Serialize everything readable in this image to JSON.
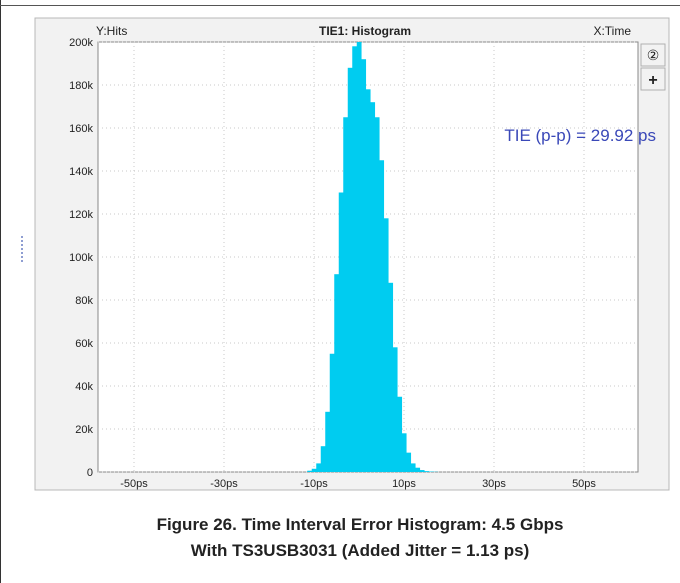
{
  "chart_data": {
    "type": "bar",
    "title": "TIE1: Histogram",
    "ylabel": "Y:Hits",
    "xlabel": "X:Time",
    "xlim": [
      -58,
      62
    ],
    "ylim": [
      0,
      200000
    ],
    "x_ticks": [
      -50,
      -30,
      -10,
      10,
      30,
      50
    ],
    "x_tick_labels": [
      "-50ps",
      "-30ps",
      "-10ps",
      "10ps",
      "30ps",
      "50ps"
    ],
    "y_ticks": [
      0,
      20000,
      40000,
      60000,
      80000,
      100000,
      120000,
      140000,
      160000,
      180000,
      200000
    ],
    "y_tick_labels": [
      "0",
      "20k",
      "40k",
      "60k",
      "80k",
      "100k",
      "120k",
      "140k",
      "160k",
      "180k",
      "200k"
    ],
    "grid": true,
    "bar_color": "#00ccf0",
    "x": [
      -12,
      -11,
      -10,
      -9,
      -8,
      -7,
      -6,
      -5,
      -4,
      -3,
      -2,
      -1,
      0,
      1,
      2,
      3,
      4,
      5,
      6,
      7,
      8,
      9,
      10,
      11,
      12,
      13,
      14,
      15,
      16,
      17,
      18
    ],
    "values": [
      0,
      600,
      1500,
      4000,
      12000,
      28000,
      55000,
      92000,
      130000,
      165000,
      188000,
      198000,
      200000,
      192000,
      178000,
      172000,
      165000,
      145000,
      118000,
      88000,
      58000,
      35000,
      18000,
      9000,
      4000,
      2000,
      900,
      400,
      200,
      100,
      0
    ],
    "annotation": "TIE (p-p) = 29.92 ps",
    "annotation_color": "#3a48b8"
  },
  "toolbar": {
    "circle_two": "②",
    "plus": "+"
  },
  "caption": {
    "line1": "Figure 26. Time Interval Error Histogram: 4.5 Gbps",
    "line2": "With TS3USB3031 (Added Jitter = 1.13 ps)"
  }
}
